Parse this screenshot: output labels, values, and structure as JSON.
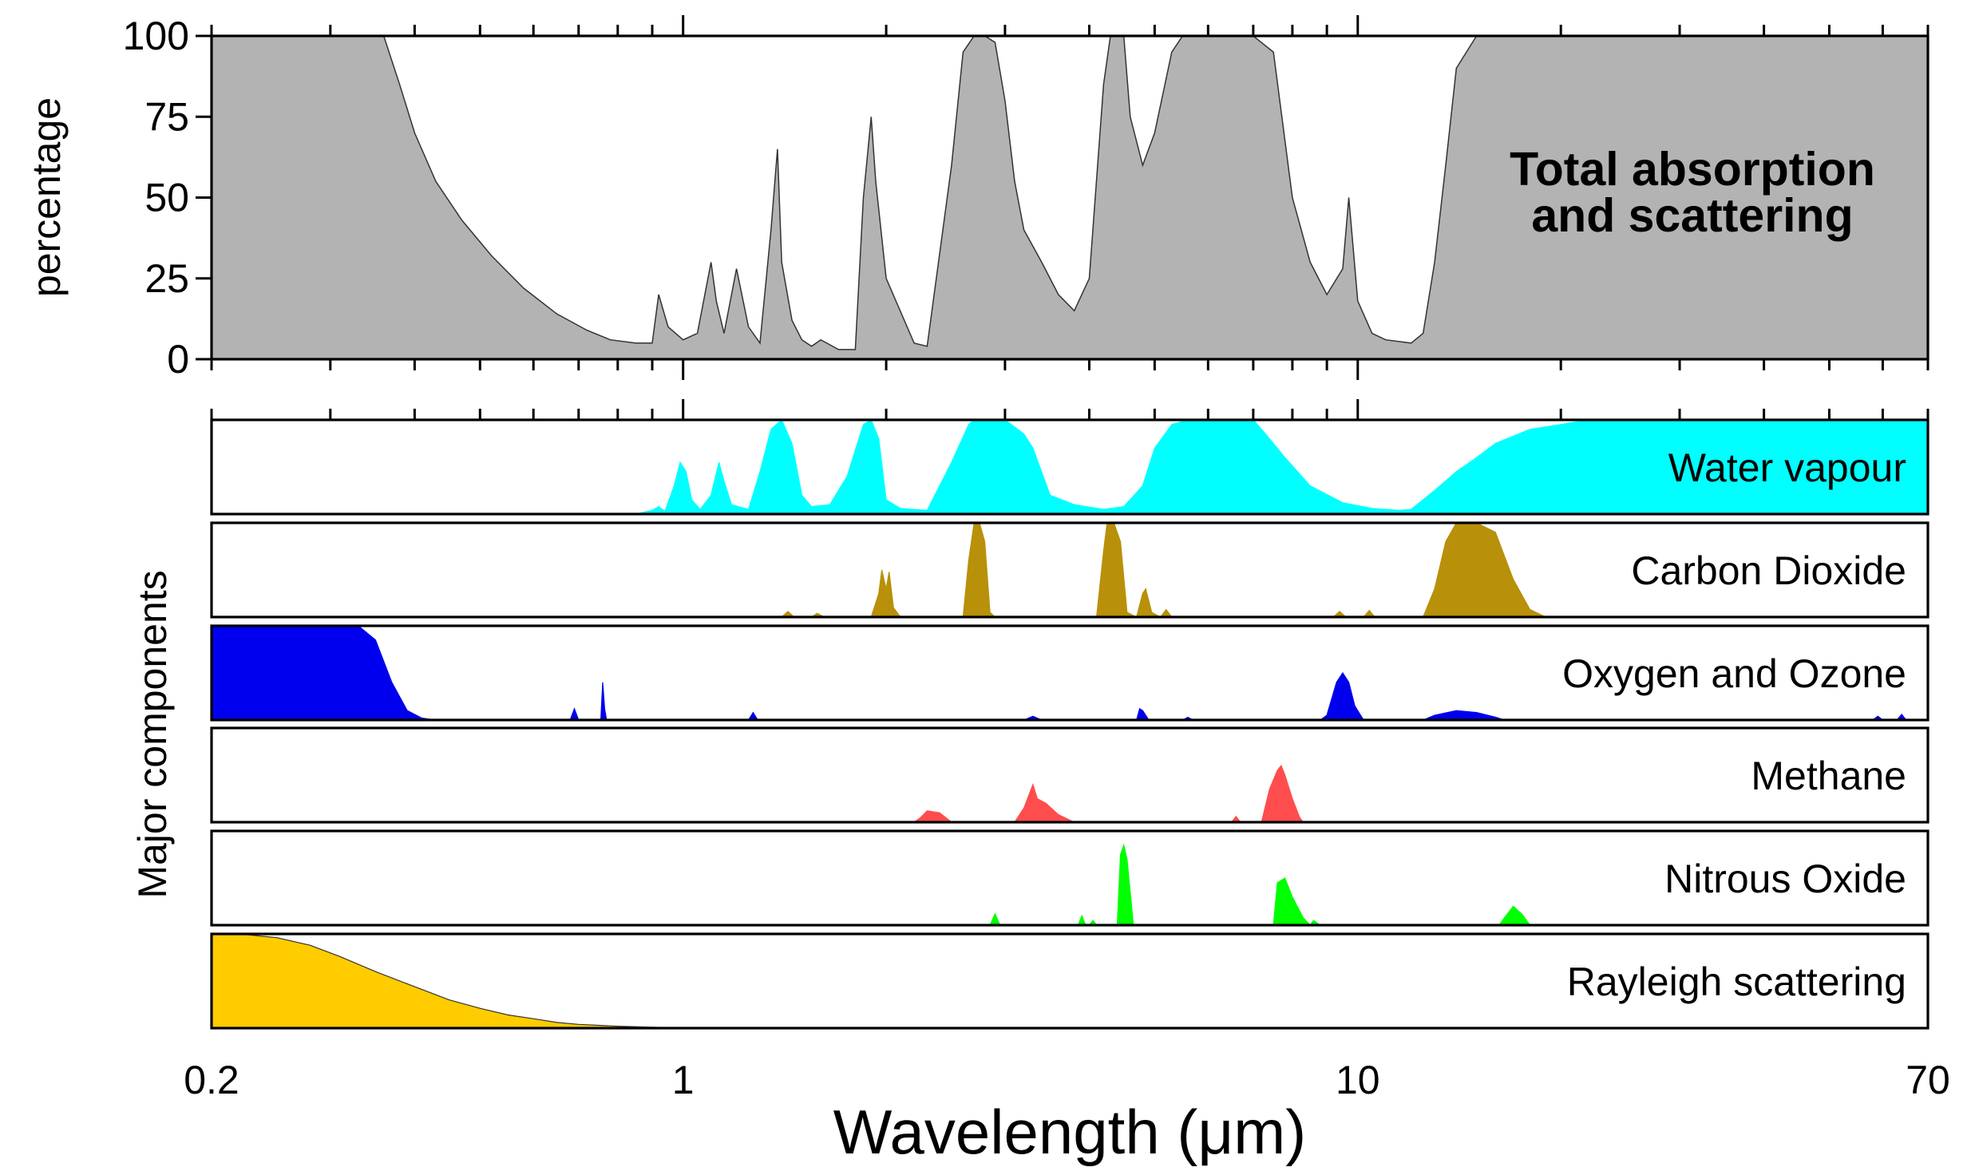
{
  "chart_data": {
    "type": "area",
    "xlabel": "Wavelength (μm)",
    "x_scale": "log",
    "xlim": [
      0.2,
      70
    ],
    "x_ticks": [
      0.2,
      1,
      10,
      70
    ],
    "x_tick_labels": [
      "0.2",
      "1",
      "10",
      "70"
    ],
    "panels": [
      {
        "id": "total",
        "name": "Total absorption and scattering",
        "name_lines": [
          "Total absorption",
          "and scattering"
        ],
        "ylabel": "percentage",
        "ylim": [
          0,
          100
        ],
        "y_ticks": [
          0,
          25,
          50,
          75,
          100
        ],
        "y_tick_labels": [
          "0",
          "25",
          "50",
          "75",
          "100"
        ],
        "color": "#b3b3b3",
        "points": [
          [
            0.2,
            100
          ],
          [
            0.36,
            100
          ],
          [
            0.38,
            85
          ],
          [
            0.4,
            70
          ],
          [
            0.43,
            55
          ],
          [
            0.47,
            43
          ],
          [
            0.52,
            32
          ],
          [
            0.58,
            22
          ],
          [
            0.65,
            14
          ],
          [
            0.72,
            9
          ],
          [
            0.78,
            6
          ],
          [
            0.85,
            5
          ],
          [
            0.9,
            5
          ],
          [
            0.92,
            20
          ],
          [
            0.95,
            10
          ],
          [
            1.0,
            6
          ],
          [
            1.05,
            8
          ],
          [
            1.1,
            30
          ],
          [
            1.12,
            18
          ],
          [
            1.15,
            8
          ],
          [
            1.2,
            28
          ],
          [
            1.25,
            10
          ],
          [
            1.3,
            5
          ],
          [
            1.35,
            40
          ],
          [
            1.38,
            65
          ],
          [
            1.4,
            30
          ],
          [
            1.45,
            12
          ],
          [
            1.5,
            6
          ],
          [
            1.55,
            4
          ],
          [
            1.6,
            6
          ],
          [
            1.7,
            3
          ],
          [
            1.8,
            3
          ],
          [
            1.85,
            50
          ],
          [
            1.9,
            75
          ],
          [
            1.93,
            55
          ],
          [
            2.0,
            25
          ],
          [
            2.2,
            5
          ],
          [
            2.3,
            4
          ],
          [
            2.5,
            60
          ],
          [
            2.6,
            95
          ],
          [
            2.7,
            100
          ],
          [
            2.8,
            100
          ],
          [
            2.9,
            98
          ],
          [
            3.0,
            80
          ],
          [
            3.1,
            55
          ],
          [
            3.2,
            40
          ],
          [
            3.4,
            30
          ],
          [
            3.6,
            20
          ],
          [
            3.8,
            15
          ],
          [
            4.0,
            25
          ],
          [
            4.2,
            85
          ],
          [
            4.3,
            100
          ],
          [
            4.5,
            100
          ],
          [
            4.6,
            75
          ],
          [
            4.8,
            60
          ],
          [
            5.0,
            70
          ],
          [
            5.3,
            95
          ],
          [
            5.5,
            100
          ],
          [
            7.0,
            100
          ],
          [
            7.5,
            95
          ],
          [
            8.0,
            50
          ],
          [
            8.5,
            30
          ],
          [
            9.0,
            20
          ],
          [
            9.5,
            28
          ],
          [
            9.7,
            50
          ],
          [
            10.0,
            18
          ],
          [
            10.5,
            8
          ],
          [
            11.0,
            6
          ],
          [
            12.0,
            5
          ],
          [
            12.5,
            8
          ],
          [
            13.0,
            30
          ],
          [
            13.5,
            60
          ],
          [
            14.0,
            90
          ],
          [
            15.0,
            100
          ],
          [
            70,
            100
          ]
        ]
      },
      {
        "id": "water",
        "name": "Water vapour",
        "color": "#00ffff",
        "points": [
          [
            0.2,
            0
          ],
          [
            0.85,
            0
          ],
          [
            0.9,
            4
          ],
          [
            0.92,
            8
          ],
          [
            0.94,
            3
          ],
          [
            0.97,
            30
          ],
          [
            0.99,
            55
          ],
          [
            1.01,
            45
          ],
          [
            1.03,
            15
          ],
          [
            1.06,
            5
          ],
          [
            1.1,
            20
          ],
          [
            1.13,
            55
          ],
          [
            1.15,
            35
          ],
          [
            1.18,
            10
          ],
          [
            1.25,
            5
          ],
          [
            1.3,
            45
          ],
          [
            1.35,
            90
          ],
          [
            1.4,
            100
          ],
          [
            1.45,
            75
          ],
          [
            1.5,
            20
          ],
          [
            1.55,
            8
          ],
          [
            1.65,
            10
          ],
          [
            1.75,
            40
          ],
          [
            1.85,
            95
          ],
          [
            1.9,
            100
          ],
          [
            1.95,
            80
          ],
          [
            2.0,
            15
          ],
          [
            2.1,
            6
          ],
          [
            2.3,
            4
          ],
          [
            2.5,
            55
          ],
          [
            2.65,
            95
          ],
          [
            2.7,
            100
          ],
          [
            3.0,
            100
          ],
          [
            3.2,
            85
          ],
          [
            3.3,
            70
          ],
          [
            3.5,
            20
          ],
          [
            3.8,
            10
          ],
          [
            4.2,
            5
          ],
          [
            4.5,
            8
          ],
          [
            4.8,
            30
          ],
          [
            5.0,
            70
          ],
          [
            5.3,
            95
          ],
          [
            5.6,
            100
          ],
          [
            7.0,
            100
          ],
          [
            7.3,
            85
          ],
          [
            7.8,
            60
          ],
          [
            8.5,
            30
          ],
          [
            9.5,
            12
          ],
          [
            10.5,
            6
          ],
          [
            11.5,
            4
          ],
          [
            12.0,
            5
          ],
          [
            13.0,
            25
          ],
          [
            14.0,
            45
          ],
          [
            15.0,
            60
          ],
          [
            16.0,
            75
          ],
          [
            18.0,
            90
          ],
          [
            20.0,
            95
          ],
          [
            22.0,
            100
          ],
          [
            70,
            100
          ]
        ]
      },
      {
        "id": "co2",
        "name": "Carbon Dioxide",
        "color": "#b8900a",
        "points": [
          [
            0.2,
            0
          ],
          [
            1.4,
            0
          ],
          [
            1.43,
            6
          ],
          [
            1.46,
            0
          ],
          [
            1.55,
            0
          ],
          [
            1.58,
            4
          ],
          [
            1.62,
            0
          ],
          [
            1.9,
            0
          ],
          [
            1.95,
            25
          ],
          [
            1.97,
            50
          ],
          [
            2.0,
            30
          ],
          [
            2.02,
            48
          ],
          [
            2.05,
            10
          ],
          [
            2.1,
            0
          ],
          [
            2.6,
            0
          ],
          [
            2.65,
            60
          ],
          [
            2.7,
            100
          ],
          [
            2.75,
            100
          ],
          [
            2.8,
            80
          ],
          [
            2.85,
            5
          ],
          [
            2.9,
            0
          ],
          [
            4.1,
            0
          ],
          [
            4.2,
            70
          ],
          [
            4.25,
            100
          ],
          [
            4.35,
            100
          ],
          [
            4.45,
            80
          ],
          [
            4.55,
            5
          ],
          [
            4.7,
            0
          ],
          [
            4.8,
            25
          ],
          [
            4.85,
            30
          ],
          [
            4.95,
            5
          ],
          [
            5.1,
            0
          ],
          [
            5.2,
            8
          ],
          [
            5.3,
            0
          ],
          [
            9.2,
            0
          ],
          [
            9.4,
            6
          ],
          [
            9.6,
            0
          ],
          [
            10.2,
            0
          ],
          [
            10.4,
            7
          ],
          [
            10.6,
            0
          ],
          [
            12.5,
            0
          ],
          [
            13.0,
            30
          ],
          [
            13.5,
            80
          ],
          [
            14.0,
            100
          ],
          [
            15.0,
            100
          ],
          [
            16.0,
            90
          ],
          [
            17.0,
            40
          ],
          [
            18.0,
            8
          ],
          [
            19.0,
            0
          ],
          [
            70,
            0
          ]
        ]
      },
      {
        "id": "o2o3",
        "name": "Oxygen and Ozone",
        "color": "#0000ee",
        "points": [
          [
            0.2,
            100
          ],
          [
            0.33,
            100
          ],
          [
            0.35,
            85
          ],
          [
            0.37,
            40
          ],
          [
            0.39,
            10
          ],
          [
            0.41,
            2
          ],
          [
            0.43,
            0
          ],
          [
            0.68,
            0
          ],
          [
            0.69,
            12
          ],
          [
            0.7,
            0
          ],
          [
            0.755,
            0
          ],
          [
            0.76,
            40
          ],
          [
            0.765,
            12
          ],
          [
            0.77,
            0
          ],
          [
            1.25,
            0
          ],
          [
            1.27,
            8
          ],
          [
            1.29,
            0
          ],
          [
            3.2,
            0
          ],
          [
            3.3,
            4
          ],
          [
            3.4,
            0
          ],
          [
            4.7,
            0
          ],
          [
            4.75,
            12
          ],
          [
            4.8,
            10
          ],
          [
            4.9,
            0
          ],
          [
            5.5,
            0
          ],
          [
            5.6,
            3
          ],
          [
            5.7,
            0
          ],
          [
            8.8,
            0
          ],
          [
            9.0,
            5
          ],
          [
            9.3,
            40
          ],
          [
            9.5,
            50
          ],
          [
            9.7,
            40
          ],
          [
            9.9,
            15
          ],
          [
            10.2,
            0
          ],
          [
            12.5,
            0
          ],
          [
            13.0,
            5
          ],
          [
            14.0,
            10
          ],
          [
            15.0,
            8
          ],
          [
            16.0,
            3
          ],
          [
            16.5,
            0
          ],
          [
            58.0,
            0
          ],
          [
            59.0,
            4
          ],
          [
            60.0,
            0
          ],
          [
            63.0,
            0
          ],
          [
            64.0,
            6
          ],
          [
            65.0,
            0
          ],
          [
            70,
            0
          ]
        ]
      },
      {
        "id": "ch4",
        "name": "Methane",
        "color": "#ff4d4d",
        "points": [
          [
            0.2,
            0
          ],
          [
            2.2,
            0
          ],
          [
            2.25,
            5
          ],
          [
            2.3,
            12
          ],
          [
            2.4,
            10
          ],
          [
            2.5,
            0
          ],
          [
            3.1,
            0
          ],
          [
            3.2,
            15
          ],
          [
            3.3,
            40
          ],
          [
            3.35,
            25
          ],
          [
            3.45,
            20
          ],
          [
            3.6,
            8
          ],
          [
            3.8,
            0
          ],
          [
            6.5,
            0
          ],
          [
            6.6,
            6
          ],
          [
            6.7,
            0
          ],
          [
            7.2,
            0
          ],
          [
            7.4,
            35
          ],
          [
            7.6,
            55
          ],
          [
            7.7,
            60
          ],
          [
            7.8,
            50
          ],
          [
            8.0,
            25
          ],
          [
            8.2,
            5
          ],
          [
            8.3,
            0
          ],
          [
            70,
            0
          ]
        ]
      },
      {
        "id": "n2o",
        "name": "Nitrous Oxide",
        "color": "#00ff00",
        "points": [
          [
            0.2,
            0
          ],
          [
            2.85,
            0
          ],
          [
            2.9,
            12
          ],
          [
            2.95,
            0
          ],
          [
            3.85,
            0
          ],
          [
            3.9,
            10
          ],
          [
            3.95,
            0
          ],
          [
            4.0,
            0
          ],
          [
            4.05,
            5
          ],
          [
            4.1,
            0
          ],
          [
            4.4,
            0
          ],
          [
            4.45,
            75
          ],
          [
            4.5,
            85
          ],
          [
            4.55,
            70
          ],
          [
            4.65,
            0
          ],
          [
            7.5,
            0
          ],
          [
            7.6,
            45
          ],
          [
            7.8,
            50
          ],
          [
            8.0,
            30
          ],
          [
            8.3,
            8
          ],
          [
            8.5,
            0
          ],
          [
            8.6,
            5
          ],
          [
            8.8,
            0
          ],
          [
            16.2,
            0
          ],
          [
            16.5,
            8
          ],
          [
            17.0,
            20
          ],
          [
            17.5,
            12
          ],
          [
            18.0,
            0
          ],
          [
            70,
            0
          ]
        ]
      },
      {
        "id": "rayleigh",
        "name": "Rayleigh scattering",
        "color": "#ffcc00",
        "points": [
          [
            0.2,
            100
          ],
          [
            0.22,
            100
          ],
          [
            0.25,
            96
          ],
          [
            0.28,
            88
          ],
          [
            0.31,
            76
          ],
          [
            0.35,
            60
          ],
          [
            0.4,
            44
          ],
          [
            0.45,
            30
          ],
          [
            0.5,
            21
          ],
          [
            0.55,
            14
          ],
          [
            0.6,
            10
          ],
          [
            0.65,
            6
          ],
          [
            0.7,
            4
          ],
          [
            0.75,
            3
          ],
          [
            0.8,
            2
          ],
          [
            0.9,
            1
          ],
          [
            1.0,
            0
          ],
          [
            70,
            0
          ]
        ]
      }
    ],
    "lower_ylabel": "Major components",
    "grid": false
  }
}
